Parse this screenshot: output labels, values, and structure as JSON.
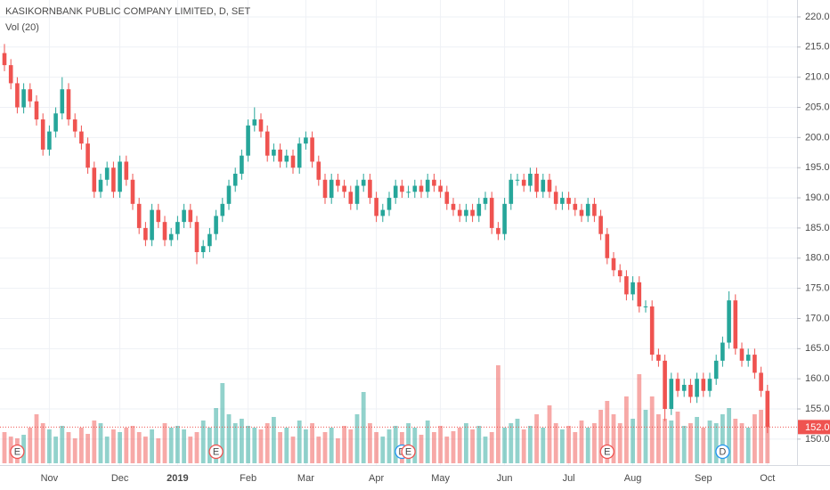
{
  "chart_data": {
    "type": "candlestick",
    "title": "KASIKORNBANK PUBLIC COMPANY LIMITED, D, SET",
    "subtitle": "Vol (20)",
    "categories": [
      null,
      null,
      null,
      null,
      null,
      null,
      null,
      "Nov",
      null,
      null,
      null,
      null,
      null,
      null,
      null,
      null,
      null,
      null,
      "Dec",
      null,
      null,
      null,
      null,
      null,
      null,
      null,
      null,
      "2019",
      null,
      null,
      null,
      null,
      null,
      null,
      null,
      null,
      null,
      null,
      "Feb",
      null,
      null,
      null,
      null,
      null,
      null,
      null,
      null,
      "Mar",
      null,
      null,
      null,
      null,
      null,
      null,
      null,
      null,
      null,
      null,
      "Apr",
      null,
      null,
      null,
      null,
      null,
      null,
      null,
      null,
      null,
      "May",
      null,
      null,
      null,
      null,
      null,
      null,
      null,
      null,
      null,
      "Jun",
      null,
      null,
      null,
      null,
      null,
      null,
      null,
      null,
      null,
      "Jul",
      null,
      null,
      null,
      null,
      null,
      null,
      null,
      null,
      null,
      "Aug",
      null,
      null,
      null,
      null,
      null,
      null,
      null,
      null,
      null,
      null,
      "Sep",
      null,
      null,
      null,
      null,
      null,
      null,
      null,
      null,
      null,
      "Oct"
    ],
    "open": [
      214,
      212,
      209,
      205,
      208,
      206,
      203,
      198,
      201,
      204,
      208,
      203,
      201,
      199,
      195,
      191,
      193,
      195,
      191,
      196,
      193,
      189,
      185,
      183,
      188,
      186,
      183,
      184,
      186,
      188,
      186,
      181,
      182,
      184,
      187,
      189,
      192,
      194,
      197,
      202,
      203,
      201,
      197,
      198,
      196,
      197,
      195,
      199,
      200,
      196,
      193,
      190,
      193,
      192,
      191,
      189,
      192,
      193,
      190,
      187,
      188,
      190,
      192,
      191,
      191,
      192,
      191,
      193,
      192,
      191,
      189,
      188,
      187,
      188,
      187,
      189,
      190,
      185,
      184,
      189,
      193,
      193,
      192,
      194,
      191,
      193,
      191,
      189,
      190,
      189,
      188,
      187,
      189,
      187,
      184,
      180,
      178,
      177,
      174,
      176,
      172,
      172,
      164,
      163,
      155,
      160,
      158,
      159,
      157,
      160,
      158,
      160,
      163,
      166,
      173,
      165,
      163,
      164,
      161,
      158
    ],
    "high": [
      215.5,
      213,
      210,
      209,
      209,
      207,
      204,
      202,
      205,
      210,
      209,
      204,
      202,
      200,
      196,
      194,
      196,
      196,
      197,
      197,
      194,
      190,
      186,
      189,
      189,
      187,
      185,
      187,
      189,
      189,
      187,
      183,
      185,
      188,
      190,
      193,
      195,
      198,
      203,
      205,
      204,
      202,
      199,
      199,
      198,
      198,
      200,
      201,
      201,
      197,
      194,
      194,
      194,
      193,
      192,
      193,
      194,
      194,
      191,
      189,
      191,
      193,
      193,
      192,
      193,
      193,
      194,
      194,
      193,
      192,
      190,
      189,
      189,
      189,
      190,
      191,
      191,
      186,
      190,
      194,
      194,
      194,
      195,
      195,
      194,
      194,
      192,
      191,
      191,
      190,
      189,
      190,
      190,
      188,
      185,
      181,
      179,
      178,
      177,
      177,
      173,
      173,
      165,
      164,
      161,
      161,
      160,
      160,
      161,
      161,
      161,
      164,
      167,
      174.5,
      174,
      166,
      165,
      165,
      162,
      159
    ],
    "low": [
      211,
      208,
      204,
      204,
      205,
      202,
      197,
      197,
      200,
      203,
      202,
      200,
      198,
      194,
      190,
      190,
      192,
      190,
      190,
      192,
      188,
      184,
      182,
      182,
      185,
      182,
      182,
      183,
      185,
      185,
      179,
      180,
      181,
      183,
      186,
      188,
      191,
      193,
      196,
      201,
      200,
      196,
      196,
      195,
      195,
      194,
      194,
      198,
      195,
      192,
      189,
      189,
      191,
      190,
      188,
      188,
      191,
      189,
      186,
      186,
      187,
      189,
      190,
      190,
      190,
      190,
      190,
      191,
      190,
      188,
      187,
      186,
      186,
      186,
      186,
      188,
      184,
      183,
      183,
      188,
      192,
      191,
      191,
      190,
      190,
      190,
      188,
      188,
      188,
      187,
      186,
      186,
      186,
      183,
      179,
      177,
      176,
      173,
      173,
      171,
      171,
      163,
      162,
      153,
      154,
      157,
      157,
      156,
      156,
      157,
      157,
      159,
      162,
      165,
      164,
      162,
      162,
      160,
      157,
      151
    ],
    "close": [
      212,
      209,
      205,
      208,
      206,
      203,
      198,
      201,
      204,
      208,
      203,
      201,
      199,
      195,
      191,
      193,
      195,
      191,
      196,
      193,
      189,
      185,
      183,
      188,
      186,
      183,
      184,
      186,
      188,
      186,
      181,
      182,
      184,
      187,
      189,
      192,
      194,
      197,
      202,
      203,
      201,
      197,
      198,
      196,
      197,
      195,
      199,
      200,
      196,
      193,
      190,
      193,
      192,
      191,
      189,
      192,
      193,
      190,
      187,
      188,
      190,
      192,
      191,
      191,
      192,
      191,
      193,
      192,
      191,
      189,
      188,
      187,
      188,
      187,
      189,
      190,
      185,
      184,
      189,
      193,
      193,
      192,
      194,
      191,
      193,
      191,
      189,
      190,
      189,
      188,
      187,
      189,
      187,
      184,
      180,
      178,
      177,
      174,
      176,
      172,
      172,
      164,
      163,
      155,
      160,
      158,
      159,
      157,
      160,
      158,
      160,
      163,
      166,
      173,
      165,
      163,
      164,
      161,
      158,
      152
    ],
    "volume": [
      35,
      30,
      28,
      32,
      40,
      55,
      45,
      38,
      30,
      42,
      35,
      28,
      40,
      33,
      48,
      45,
      30,
      38,
      35,
      40,
      42,
      35,
      30,
      38,
      28,
      45,
      40,
      42,
      38,
      30,
      35,
      48,
      40,
      62,
      90,
      55,
      45,
      50,
      42,
      40,
      38,
      45,
      52,
      35,
      40,
      30,
      48,
      38,
      45,
      30,
      35,
      40,
      28,
      42,
      38,
      55,
      80,
      45,
      35,
      30,
      38,
      42,
      35,
      45,
      40,
      32,
      48,
      35,
      42,
      30,
      36,
      40,
      45,
      38,
      42,
      30,
      35,
      110,
      40,
      45,
      50,
      38,
      42,
      55,
      40,
      65,
      45,
      38,
      42,
      35,
      48,
      40,
      45,
      60,
      70,
      55,
      45,
      75,
      50,
      100,
      60,
      75,
      55,
      50,
      48,
      58,
      42,
      45,
      52,
      40,
      48,
      45,
      55,
      62,
      50,
      45,
      40,
      55,
      60,
      45
    ],
    "events": [
      null,
      null,
      "E",
      null,
      null,
      null,
      null,
      null,
      null,
      null,
      null,
      null,
      null,
      null,
      null,
      null,
      null,
      null,
      null,
      null,
      null,
      null,
      null,
      null,
      null,
      null,
      null,
      null,
      null,
      null,
      null,
      null,
      null,
      "E",
      null,
      null,
      null,
      null,
      null,
      null,
      null,
      null,
      null,
      null,
      null,
      null,
      null,
      null,
      null,
      null,
      null,
      null,
      null,
      null,
      null,
      null,
      null,
      null,
      null,
      null,
      null,
      null,
      "D",
      "E",
      null,
      null,
      null,
      null,
      null,
      null,
      null,
      null,
      null,
      null,
      null,
      null,
      null,
      null,
      null,
      null,
      null,
      null,
      null,
      null,
      null,
      null,
      null,
      null,
      null,
      null,
      null,
      null,
      null,
      null,
      "E",
      null,
      null,
      null,
      null,
      null,
      null,
      null,
      null,
      null,
      null,
      null,
      null,
      null,
      null,
      null,
      null,
      null,
      "D",
      null,
      null,
      null,
      null,
      null,
      null,
      null
    ],
    "up_color": "#26a69a",
    "down_color": "#ef5350",
    "ylim": [
      145.7,
      222.8
    ],
    "yticks": [
      {
        "value": 150,
        "label": "150.0"
      },
      {
        "value": 155,
        "label": "155.0"
      },
      {
        "value": 160,
        "label": "160.0"
      },
      {
        "value": 165,
        "label": "165.0"
      },
      {
        "value": 170,
        "label": "170.0"
      },
      {
        "value": 175,
        "label": "175.0"
      },
      {
        "value": 180,
        "label": "180.0"
      },
      {
        "value": 185,
        "label": "185.0"
      },
      {
        "value": 190,
        "label": "190.0"
      },
      {
        "value": 195,
        "label": "195.0"
      },
      {
        "value": 200,
        "label": "200.0"
      },
      {
        "value": 205,
        "label": "205.0"
      },
      {
        "value": 210,
        "label": "210.0"
      },
      {
        "value": 215,
        "label": "215.0"
      },
      {
        "value": 220,
        "label": "220.0"
      }
    ],
    "last_price": {
      "value": 152,
      "label": "152.0"
    },
    "grid": true
  }
}
